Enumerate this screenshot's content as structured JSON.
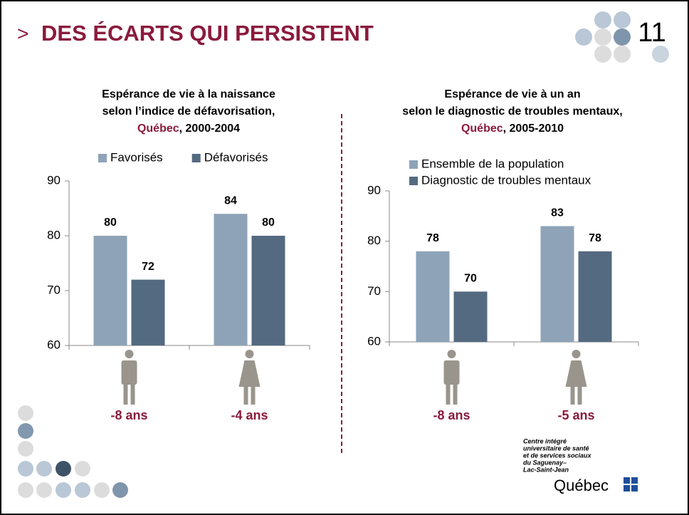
{
  "slide": {
    "marker": ">",
    "title": "DES ÉCARTS QUI PERSISTENT",
    "page_number": "11",
    "logo": {
      "lines": [
        "Centre intégré",
        "universitaire de santé",
        "et de services sociaux",
        "du Saguenay–",
        "Lac-Saint-Jean"
      ],
      "brand": "Québec"
    }
  },
  "chart_data": [
    {
      "type": "bar",
      "title": [
        "Espérance de vie à la naissance",
        "selon l’indice de défavorisation,"
      ],
      "title_highlight": "Québec",
      "title_suffix": ", 2000-2004",
      "categories": [
        null,
        null
      ],
      "annotations": [
        "-8 ans",
        "-4 ans"
      ],
      "series": [
        {
          "name": "Favorisés",
          "color": "#8ea3b7",
          "values": [
            80,
            84
          ]
        },
        {
          "name": "Défavorisés",
          "color": "#546a80",
          "values": [
            72,
            80
          ]
        }
      ],
      "ylim": [
        60,
        90
      ],
      "yticks": [
        60,
        70,
        80,
        90
      ],
      "legend": "top",
      "legend_layout": "horizontal"
    },
    {
      "type": "bar",
      "title": [
        "Espérance de vie à un an",
        "selon le diagnostic de troubles mentaux,"
      ],
      "title_highlight": "Québec",
      "title_suffix": ", 2005-2010",
      "categories": [
        null,
        null
      ],
      "annotations": [
        "-8 ans",
        "-5 ans"
      ],
      "series": [
        {
          "name": "Ensemble de la population",
          "color": "#8ea3b7",
          "values": [
            78,
            83
          ]
        },
        {
          "name": "Diagnostic de troubles mentaux",
          "color": "#546a80",
          "values": [
            70,
            78
          ]
        }
      ],
      "ylim": [
        60,
        90
      ],
      "yticks": [
        60,
        70,
        80,
        90
      ],
      "legend": "top",
      "legend_layout": "vertical"
    }
  ]
}
